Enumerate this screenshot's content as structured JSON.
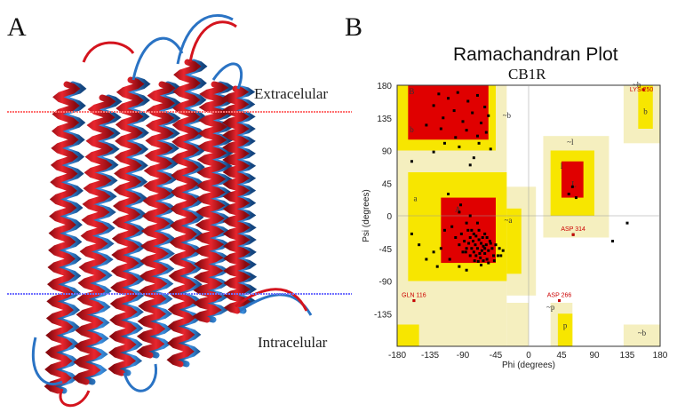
{
  "panel_a": {
    "letter": "A",
    "extracellular_label": "Extracelular",
    "intracellular_label": "Intracelular",
    "colors": {
      "structure_1": "#d4141e",
      "structure_2": "#2a73c4",
      "membrane_top": "#ff6a6a",
      "membrane_bottom": "#6a6aff"
    }
  },
  "panel_b": {
    "letter": "B",
    "chart_data": {
      "type": "scatter",
      "title": "Ramachandran Plot",
      "subtitle": "CB1R",
      "xlabel": "Phi (degrees)",
      "ylabel": "Psi (degrees)",
      "xlim": [
        -180,
        180
      ],
      "ylim": [
        -180,
        180
      ],
      "x_ticks": [
        "-180",
        "-135",
        "-90",
        "-45",
        "0",
        "45",
        "90",
        "135",
        "180"
      ],
      "y_ticks": [
        "180",
        "135",
        "90",
        "45",
        "0",
        "-45",
        "-90",
        "-135"
      ],
      "region_labels": [
        "B",
        "b",
        "a",
        "A",
        "~a",
        "~b",
        "L",
        "l",
        "~l",
        "~p",
        "p",
        "b",
        "~b",
        "~b"
      ],
      "labelled_residues": [
        {
          "name": "LYS 250",
          "phi": 157,
          "psi": 174
        },
        {
          "name": "ASP 314",
          "phi": 61,
          "psi": -26
        },
        {
          "name": "GLN 116",
          "phi": -157,
          "psi": -117
        },
        {
          "name": "ASP 266",
          "phi": 42,
          "psi": -117
        }
      ],
      "points": [
        [
          -123,
          168
        ],
        [
          -110,
          162
        ],
        [
          -97,
          170
        ],
        [
          -83,
          158
        ],
        [
          -70,
          166
        ],
        [
          -60,
          150
        ],
        [
          -102,
          145
        ],
        [
          -117,
          135
        ],
        [
          -90,
          130
        ],
        [
          -77,
          142
        ],
        [
          -65,
          128
        ],
        [
          -55,
          138
        ],
        [
          -130,
          152
        ],
        [
          -85,
          118
        ],
        [
          -70,
          110
        ],
        [
          -100,
          108
        ],
        [
          -58,
          115
        ],
        [
          -140,
          125
        ],
        [
          -115,
          100
        ],
        [
          -52,
          92
        ],
        [
          -160,
          75
        ],
        [
          -130,
          88
        ],
        [
          -75,
          80
        ],
        [
          -95,
          95
        ],
        [
          -120,
          120
        ],
        [
          -68,
          100
        ],
        [
          -110,
          30
        ],
        [
          -93,
          15
        ],
        [
          -85,
          -10
        ],
        [
          -78,
          -20
        ],
        [
          -72,
          -28
        ],
        [
          -68,
          -33
        ],
        [
          -65,
          -38
        ],
        [
          -62,
          -42
        ],
        [
          -60,
          -45
        ],
        [
          -58,
          -40
        ],
        [
          -64,
          -48
        ],
        [
          -67,
          -52
        ],
        [
          -70,
          -45
        ],
        [
          -73,
          -40
        ],
        [
          -76,
          -35
        ],
        [
          -80,
          -30
        ],
        [
          -82,
          -38
        ],
        [
          -85,
          -45
        ],
        [
          -72,
          -55
        ],
        [
          -66,
          -58
        ],
        [
          -60,
          -52
        ],
        [
          -55,
          -48
        ],
        [
          -52,
          -38
        ],
        [
          -50,
          -45
        ],
        [
          -48,
          -55
        ],
        [
          -57,
          -60
        ],
        [
          -62,
          -62
        ],
        [
          -69,
          -63
        ],
        [
          -75,
          -50
        ],
        [
          -78,
          -45
        ],
        [
          -88,
          -35
        ],
        [
          -92,
          -25
        ],
        [
          -95,
          -40
        ],
        [
          -100,
          -30
        ],
        [
          -63,
          -30
        ],
        [
          -57,
          -30
        ],
        [
          -53,
          -35
        ],
        [
          -45,
          -40
        ],
        [
          -40,
          -45
        ],
        [
          -42,
          -55
        ],
        [
          -55,
          -65
        ],
        [
          -65,
          -68
        ],
        [
          -74,
          -62
        ],
        [
          -80,
          -55
        ],
        [
          -86,
          -50
        ],
        [
          -90,
          -50
        ],
        [
          -47,
          -62
        ],
        [
          -38,
          -55
        ],
        [
          -35,
          -48
        ],
        [
          -60,
          -25
        ],
        [
          -68,
          -20
        ],
        [
          -75,
          -25
        ],
        [
          -83,
          -20
        ],
        [
          -70,
          -10
        ],
        [
          -80,
          0
        ],
        [
          -95,
          5
        ],
        [
          -105,
          -15
        ],
        [
          -115,
          -20
        ],
        [
          -120,
          -45
        ],
        [
          -130,
          -50
        ],
        [
          -108,
          -60
        ],
        [
          -125,
          -70
        ],
        [
          -140,
          -60
        ],
        [
          -95,
          -70
        ],
        [
          -160,
          -25
        ],
        [
          -150,
          -40
        ],
        [
          -85,
          -75
        ],
        [
          60,
          40
        ],
        [
          55,
          30
        ],
        [
          65,
          25
        ],
        [
          -80,
          70
        ],
        [
          115,
          -35
        ],
        [
          -157,
          -117
        ],
        [
          42,
          -117
        ],
        [
          61,
          -26
        ],
        [
          157,
          174
        ],
        [
          135,
          -10
        ]
      ]
    }
  }
}
